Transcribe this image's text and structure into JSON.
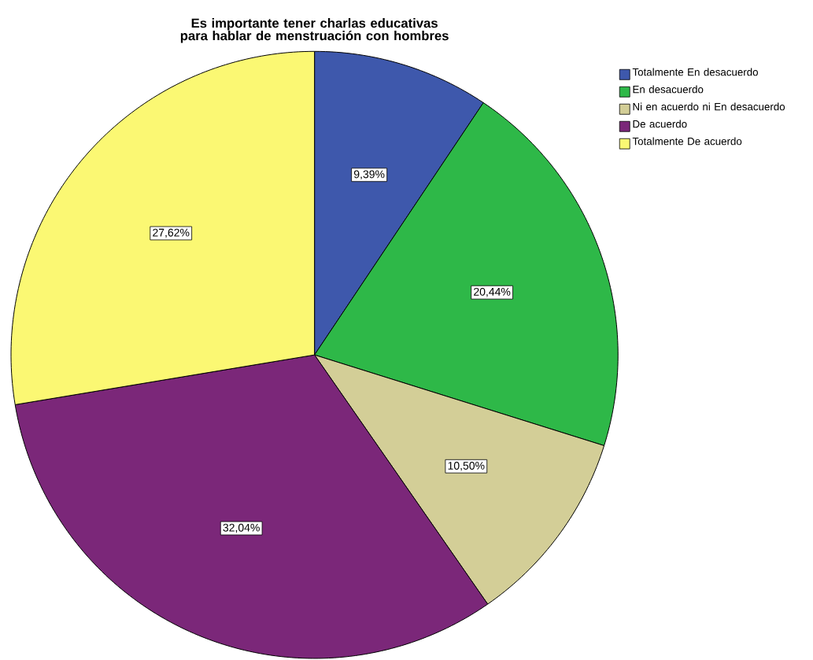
{
  "chart_data": {
    "type": "pie",
    "title": "Es importante tener charlas educativas para hablar de menstruación con hombres",
    "categories": [
      "Totalmente En desacuerdo",
      "En desacuerdo",
      "Ni en acuerdo ni En desacuerdo",
      "De acuerdo",
      "Totalmente De acuerdo"
    ],
    "values": [
      9.39,
      20.44,
      10.5,
      32.04,
      27.62
    ],
    "value_labels": [
      "9,39%",
      "20,44%",
      "10,50%",
      "32,04%",
      "27,62%"
    ],
    "colors": [
      "#3e58ac",
      "#2eb848",
      "#d3ce97",
      "#7b2779",
      "#fbf873"
    ],
    "legend": "top right"
  }
}
